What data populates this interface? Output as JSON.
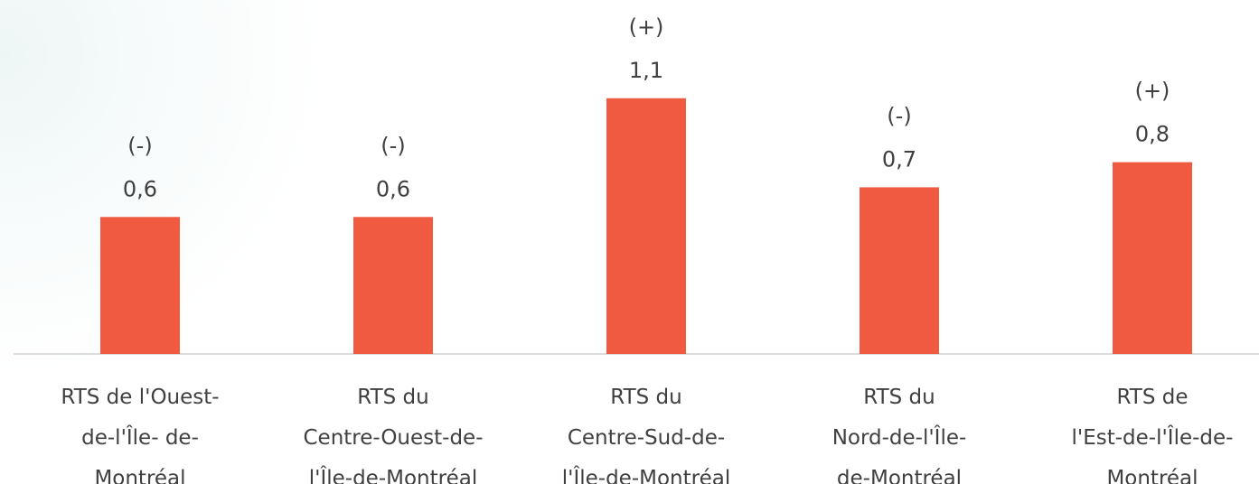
{
  "chart_data": {
    "type": "bar",
    "categories": [
      "RTS de l'Ouest-\nde-l'Île- de-\nMontréal",
      "RTS du\nCentre-Ouest-de-\nl'Île-de-Montréal",
      "RTS du\nCentre-Sud-de-\nl'Île-de-Montréal",
      "RTS du\nNord-de-l'Île-\nde-Montréal",
      "RTS de\nl'Est-de-l'Île-de-\nMontréal"
    ],
    "values": [
      0.6,
      0.6,
      1.12,
      0.73,
      0.84
    ],
    "value_labels": [
      "0,6",
      "0,6",
      "1,1",
      "0,7",
      "0,8"
    ],
    "annotations": [
      "(-)",
      "(-)",
      "(+)",
      "(-)",
      "(+)"
    ],
    "color": "#f05a40",
    "ylim": [
      0,
      1.4
    ]
  }
}
